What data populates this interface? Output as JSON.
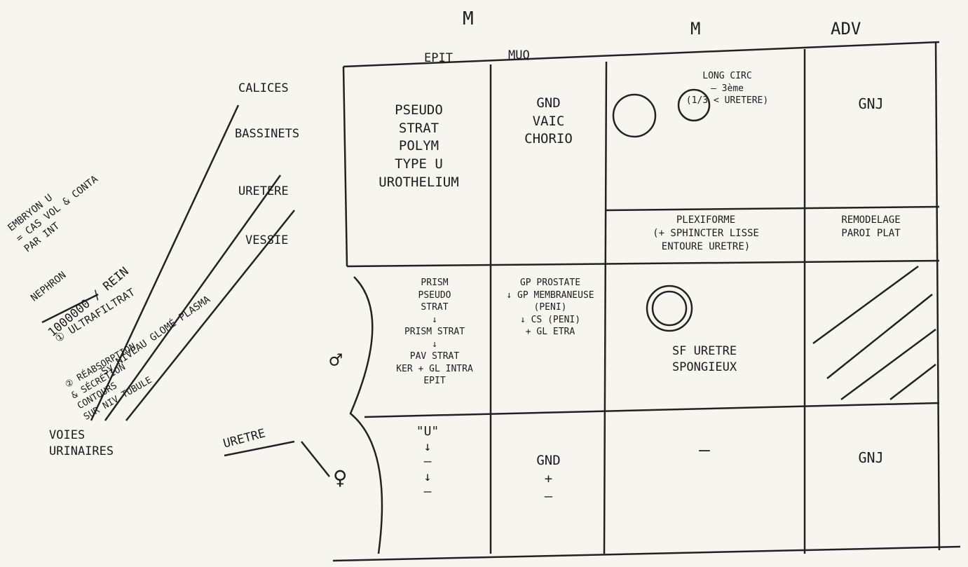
{
  "header": {
    "group": "M",
    "columns": [
      "EPIT",
      "MUQ",
      "M",
      "ADV"
    ]
  },
  "left_labels": [
    "CALICES",
    "BASSINETS",
    "URETERE",
    "VESSIE",
    "URETRE",
    "VOIES\nURINAIRES"
  ],
  "notes": [
    "EMBRYON U\n= CAS VOL & CONTA\nPAR INT",
    "NEPHRON",
    "1000000 / REIN",
    "① ULTRAFILTRAT",
    "Sy NIVEAU GLOMÉ PLASMA",
    "② RÉABSORPTION\n& SÉCRÉTION\nCONTOURS\nSUR NIV TUBULE"
  ],
  "rows": [
    {
      "label": "",
      "cells": [
        "PSEUDO\nSTRAT\nPOLYM\nTYPE U\nUROTHELIUM",
        "GND\nVAIC\nCHORIO",
        "LONG   CIRC\n— 3ème\n(1/3 < URETERE)",
        "GNJ"
      ]
    },
    {
      "label": "",
      "cells": [
        "PLEXIFORME\n(+ SPHINCTER LISSE\nENTOURE URETRE)",
        "REMODELAGE\nPAROI PLAT"
      ]
    },
    {
      "label": "♂",
      "cells": [
        "PRISM\nPSEUDO\nSTRAT\n↓\nPRISM STRAT\n↓\nPAV STRAT\nKER + GL INTRA\nEPIT",
        "GP PROSTATE\n↓ GP MEMBRANEUSE\n(PENI)\n↓ CS (PENI)\n+ GL ETRA",
        "SF URETRE\nSPONGIEUX"
      ]
    },
    {
      "label": "♀",
      "cells": [
        "\"U\"\n↓\n—\n↓\n—",
        "GND\n+\n—",
        "—",
        "GNJ"
      ]
    }
  ]
}
